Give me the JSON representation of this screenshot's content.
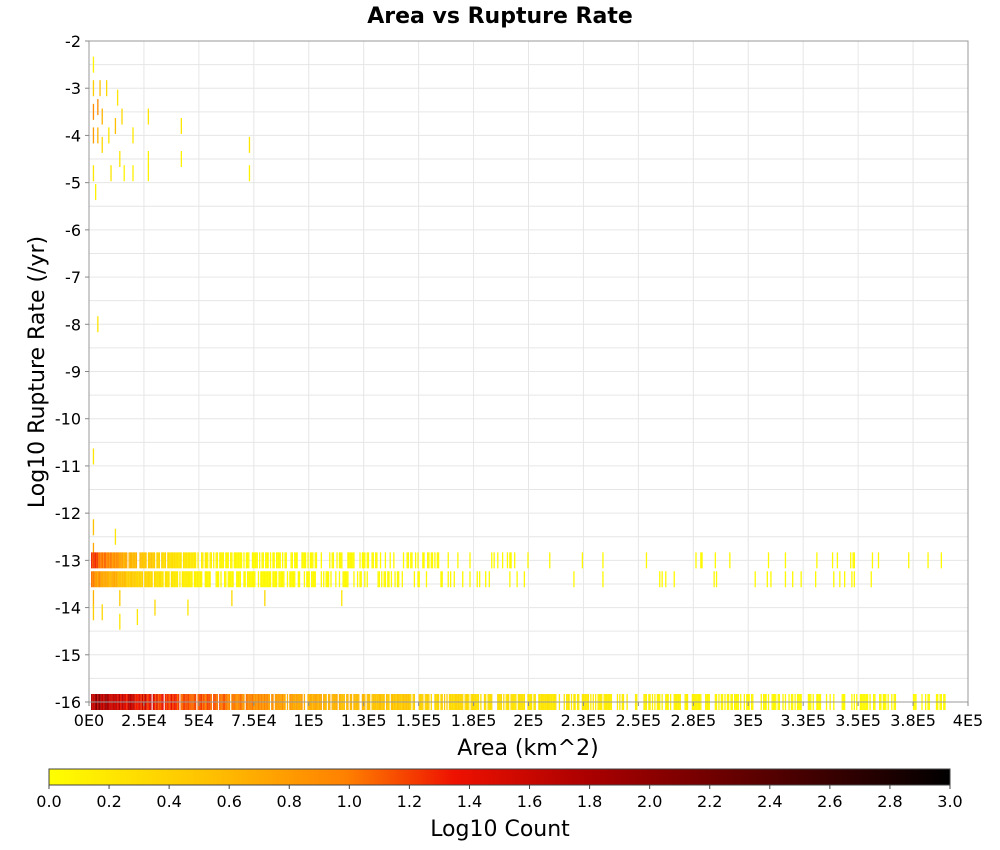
{
  "chart_data": {
    "type": "heatmap",
    "title": "Area vs Rupture Rate",
    "xlabel": "Area (km^2)",
    "ylabel": "Log10 Rupture Rate (/yr)",
    "xlim": [
      0,
      400000
    ],
    "ylim": [
      -16,
      -2
    ],
    "x_tick_labels": [
      "0E0",
      "2.5E4",
      "5E4",
      "7.5E4",
      "1E5",
      "1.3E5",
      "1.5E5",
      "1.8E5",
      "2E5",
      "2.3E5",
      "2.5E5",
      "2.8E5",
      "3E5",
      "3.3E5",
      "3.5E5",
      "3.8E5",
      "4E5"
    ],
    "y_ticks": [
      -2,
      -3,
      -4,
      -5,
      -6,
      -7,
      -8,
      -9,
      -10,
      -11,
      -12,
      -13,
      -14,
      -15,
      -16
    ],
    "grid": true,
    "colorbar": {
      "label": "Log10 Count",
      "range": [
        0,
        3
      ],
      "ticks": [
        "0.0",
        "0.2",
        "0.4",
        "0.6",
        "0.8",
        "1.0",
        "1.2",
        "1.4",
        "1.6",
        "1.8",
        "2.0",
        "2.2",
        "2.4",
        "2.6",
        "2.8",
        "3.0"
      ],
      "colors": [
        "#ffff00",
        "#ffc000",
        "#ff8000",
        "#ee1100",
        "#aa0000",
        "#550000",
        "#000000"
      ]
    },
    "cells": [
      {
        "x": 2000,
        "y": -2.5,
        "v": 0.1
      },
      {
        "x": 2000,
        "y": -3.0,
        "v": 0.4
      },
      {
        "x": 2000,
        "y": -3.5,
        "v": 0.9
      },
      {
        "x": 2000,
        "y": -4.0,
        "v": 0.8
      },
      {
        "x": 2000,
        "y": -4.8,
        "v": 0.2
      },
      {
        "x": 3000,
        "y": -5.2,
        "v": 0.1
      },
      {
        "x": 4000,
        "y": -3.4,
        "v": 0.9
      },
      {
        "x": 4000,
        "y": -4.0,
        "v": 0.6
      },
      {
        "x": 5000,
        "y": -3.0,
        "v": 0.5
      },
      {
        "x": 6000,
        "y": -3.6,
        "v": 0.6
      },
      {
        "x": 6000,
        "y": -4.2,
        "v": 0.3
      },
      {
        "x": 8000,
        "y": -3.0,
        "v": 0.3
      },
      {
        "x": 9000,
        "y": -4.0,
        "v": 0.2
      },
      {
        "x": 10000,
        "y": -4.8,
        "v": 0.2
      },
      {
        "x": 12000,
        "y": -3.8,
        "v": 0.5
      },
      {
        "x": 13000,
        "y": -3.2,
        "v": 0.2
      },
      {
        "x": 14000,
        "y": -4.5,
        "v": 0.2
      },
      {
        "x": 15000,
        "y": -3.6,
        "v": 0.3
      },
      {
        "x": 16000,
        "y": -4.8,
        "v": 0.1
      },
      {
        "x": 20000,
        "y": -4.0,
        "v": 0.2
      },
      {
        "x": 20000,
        "y": -4.8,
        "v": 0.1
      },
      {
        "x": 27000,
        "y": -3.6,
        "v": 0.2
      },
      {
        "x": 27000,
        "y": -4.5,
        "v": 0.1
      },
      {
        "x": 27000,
        "y": -4.8,
        "v": 0.1
      },
      {
        "x": 42000,
        "y": -3.8,
        "v": 0.2
      },
      {
        "x": 42000,
        "y": -4.5,
        "v": 0.1
      },
      {
        "x": 73000,
        "y": -4.2,
        "v": 0.2
      },
      {
        "x": 73000,
        "y": -4.8,
        "v": 0.1
      },
      {
        "x": 4000,
        "y": -8.0,
        "v": 0.2
      },
      {
        "x": 2000,
        "y": -10.8,
        "v": 0.2
      },
      {
        "x": 2000,
        "y": -12.3,
        "v": 0.5
      },
      {
        "x": 2000,
        "y": -12.8,
        "v": 0.7
      },
      {
        "x": 2000,
        "y": -13.8,
        "v": 0.6
      },
      {
        "x": 2000,
        "y": -14.1,
        "v": 0.4
      },
      {
        "x": 6000,
        "y": -14.1,
        "v": 0.3
      },
      {
        "x": 12000,
        "y": -12.5,
        "v": 0.2
      },
      {
        "x": 14000,
        "y": -13.8,
        "v": 0.4
      },
      {
        "x": 14000,
        "y": -14.3,
        "v": 0.2
      },
      {
        "x": 22000,
        "y": -14.2,
        "v": 0.2
      },
      {
        "x": 30000,
        "y": -14.0,
        "v": 0.3
      },
      {
        "x": 45000,
        "y": -14.0,
        "v": 0.2
      },
      {
        "x": 65000,
        "y": -13.8,
        "v": 0.3
      },
      {
        "x": 80000,
        "y": -13.8,
        "v": 0.3
      },
      {
        "x": 115000,
        "y": -13.8,
        "v": 0.2
      }
    ],
    "band_rows": [
      {
        "y": -13.0,
        "x_end": 400000,
        "peak": 1.7
      },
      {
        "y": -13.4,
        "x_end": 360000,
        "peak": 1.2
      },
      {
        "y": -16.0,
        "x_end": 390000,
        "peak": 2.4
      }
    ]
  }
}
